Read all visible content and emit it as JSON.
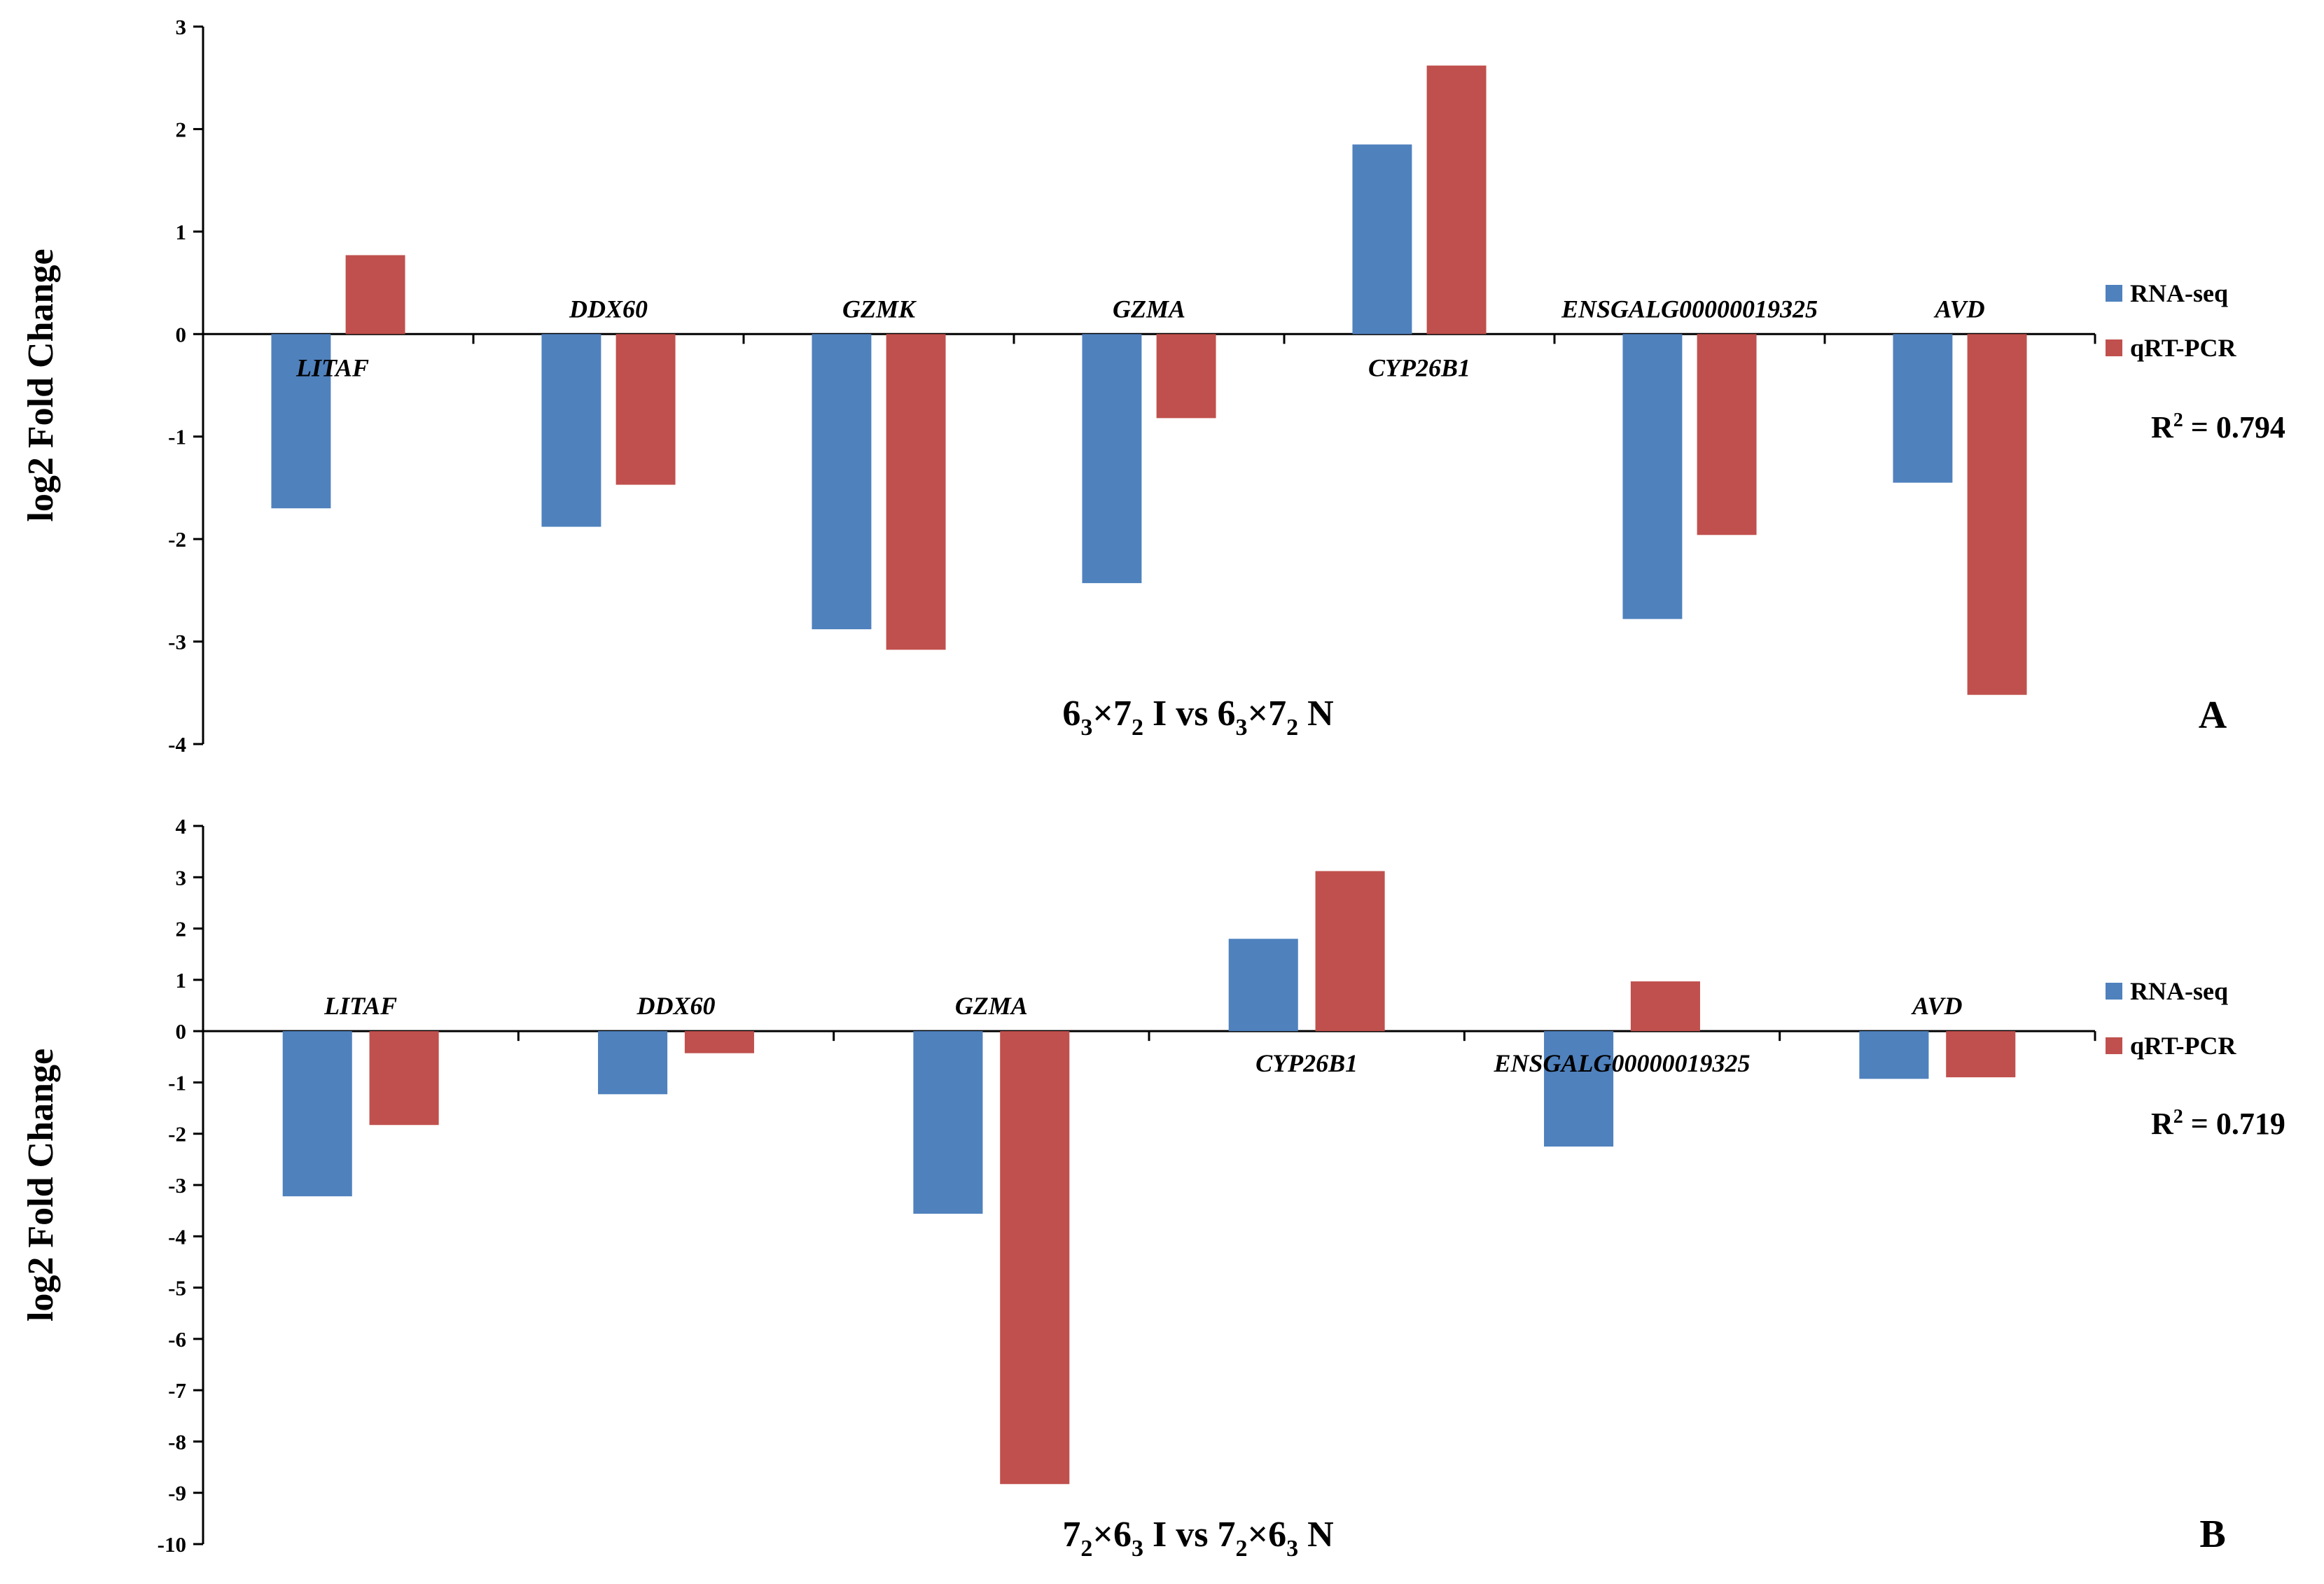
{
  "colors": {
    "rnaseq": "#4f81bd",
    "qrtpcr": "#c0504d",
    "axis": "#000000",
    "background": "#ffffff"
  },
  "chart_data": [
    {
      "type": "bar",
      "panel_label": "A",
      "title_parts": [
        {
          "t": "6",
          "sub": false
        },
        {
          "t": "3",
          "sub": true
        },
        {
          "t": "×7",
          "sub": false
        },
        {
          "t": "2",
          "sub": true
        },
        {
          "t": " I vs 6",
          "sub": false
        },
        {
          "t": "3",
          "sub": true
        },
        {
          "t": "×7",
          "sub": false
        },
        {
          "t": "2",
          "sub": true
        },
        {
          "t": " N",
          "sub": false
        }
      ],
      "ylabel": "log2 Fold Change",
      "ylim": [
        -4,
        3
      ],
      "yticks": [
        "3",
        "2",
        "1",
        "0",
        "-1",
        "-2",
        "-3",
        "-4"
      ],
      "categories": [
        "LITAF",
        "DDX60",
        "GZMK",
        "GZMA",
        "CYP26B1",
        "ENSGALG00000019325",
        "AVD"
      ],
      "series": [
        {
          "name": "RNA-seq",
          "values": [
            -1.7,
            -1.88,
            -2.88,
            -2.43,
            1.85,
            -2.78,
            -1.45
          ]
        },
        {
          "name": "qRT-PCR",
          "values": [
            0.77,
            -1.47,
            -3.08,
            -0.82,
            2.62,
            -1.96,
            -3.52
          ]
        }
      ],
      "legend": [
        "RNA-seq",
        "qRT-PCR"
      ],
      "r2_prefix": "R",
      "r2_sup": "2",
      "r2_value": " = 0.794"
    },
    {
      "type": "bar",
      "panel_label": "B",
      "title_parts": [
        {
          "t": "7",
          "sub": false
        },
        {
          "t": "2",
          "sub": true
        },
        {
          "t": "×6",
          "sub": false
        },
        {
          "t": "3",
          "sub": true
        },
        {
          "t": " I vs 7",
          "sub": false
        },
        {
          "t": "2",
          "sub": true
        },
        {
          "t": "×6",
          "sub": false
        },
        {
          "t": "3",
          "sub": true
        },
        {
          "t": " N",
          "sub": false
        }
      ],
      "ylabel": "log2 Fold Change",
      "ylim": [
        -10,
        4
      ],
      "yticks": [
        "4",
        "3",
        "2",
        "1",
        "0",
        "-1",
        "-2",
        "-3",
        "-4",
        "-5",
        "-6",
        "-7",
        "-8",
        "-9",
        "-10"
      ],
      "categories": [
        "LITAF",
        "DDX60",
        "GZMA",
        "CYP26B1",
        "ENSGALG00000019325",
        "AVD"
      ],
      "series": [
        {
          "name": "RNA-seq",
          "values": [
            -3.22,
            -1.23,
            -3.56,
            1.8,
            -2.25,
            -0.93
          ]
        },
        {
          "name": "qRT-PCR",
          "values": [
            -1.83,
            -0.43,
            -8.83,
            3.12,
            0.97,
            -0.9
          ]
        }
      ],
      "legend": [
        "RNA-seq",
        "qRT-PCR"
      ],
      "r2_prefix": "R",
      "r2_sup": "2",
      "r2_value": " = 0.719"
    }
  ]
}
